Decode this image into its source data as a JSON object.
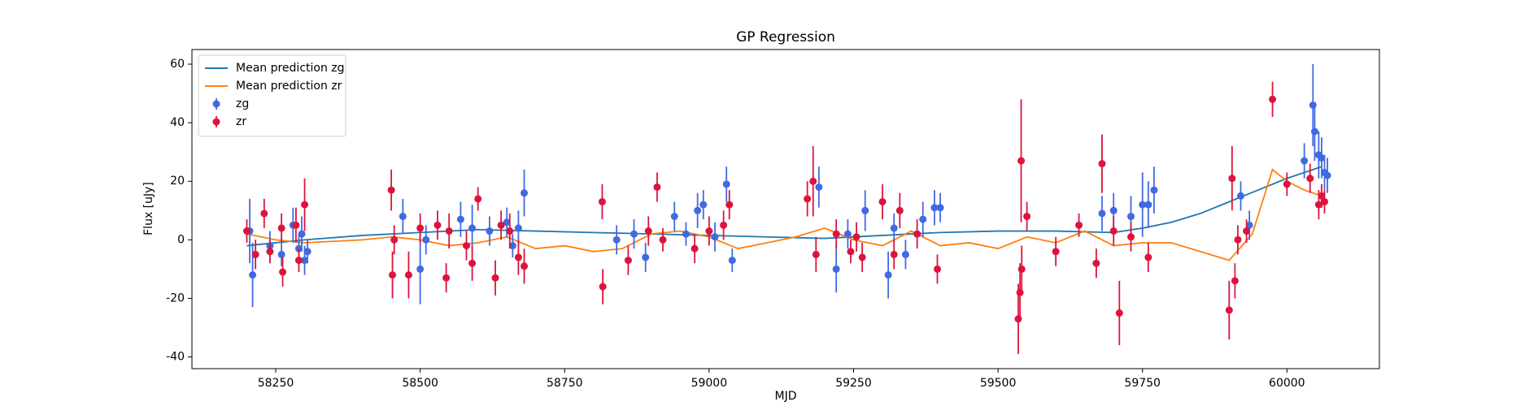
{
  "chart_data": {
    "type": "scatter",
    "title": "GP Regression",
    "xlabel": "MJD",
    "ylabel": "Flux [uJy]",
    "xlim": [
      58105,
      60160
    ],
    "ylim": [
      -44,
      65
    ],
    "xticks": [
      58250,
      58500,
      58750,
      59000,
      59250,
      59500,
      59750,
      60000
    ],
    "yticks": [
      -40,
      -20,
      0,
      20,
      40,
      60
    ],
    "legend": "upper left",
    "series": [
      {
        "name": "Mean prediction zg",
        "kind": "line",
        "color": "#1f77b4",
        "x": [
          58200,
          58300,
          58400,
          58500,
          58600,
          58700,
          58800,
          58900,
          59000,
          59100,
          59200,
          59300,
          59400,
          59500,
          59600,
          59700,
          59750,
          59800,
          59850,
          59900,
          59950,
          60000,
          60060
        ],
        "values": [
          -2,
          0,
          1.5,
          2.5,
          3.5,
          3,
          2.5,
          2,
          1.5,
          1,
          0.5,
          1.5,
          2.5,
          3,
          3,
          2.5,
          4,
          6,
          9,
          13,
          17,
          21,
          25
        ]
      },
      {
        "name": "Mean prediction zr",
        "kind": "line",
        "color": "#ff7f0e",
        "x": [
          58200,
          58250,
          58300,
          58400,
          58450,
          58500,
          58550,
          58600,
          58650,
          58700,
          58750,
          58800,
          58850,
          58900,
          58950,
          59000,
          59050,
          59100,
          59150,
          59200,
          59250,
          59300,
          59350,
          59400,
          59450,
          59500,
          59550,
          59600,
          59650,
          59700,
          59750,
          59800,
          59850,
          59900,
          59940,
          59975,
          60000,
          60030,
          60060
        ],
        "values": [
          2,
          0,
          -1,
          0,
          1,
          0,
          -2,
          -1,
          1,
          -3,
          -2,
          -4,
          -3,
          2,
          3,
          1,
          -3,
          -1,
          1,
          4,
          0,
          -2,
          3,
          -2,
          -1,
          -3,
          1,
          -1,
          3,
          -2,
          -1,
          -1,
          -4,
          -7,
          2,
          24,
          20,
          17,
          15
        ]
      },
      {
        "name": "zg",
        "kind": "errorbar",
        "color": "#4169e1",
        "x": [
          58205,
          58210,
          58240,
          58260,
          58280,
          58290,
          58295,
          58300,
          58305,
          58470,
          58500,
          58510,
          58570,
          58590,
          58620,
          58650,
          58660,
          58670,
          58680,
          58840,
          58870,
          58890,
          58940,
          58960,
          58980,
          58990,
          59010,
          59030,
          59040,
          59190,
          59220,
          59240,
          59270,
          59310,
          59320,
          59340,
          59370,
          59390,
          59400,
          59680,
          59700,
          59730,
          59750,
          59760,
          59770,
          59920,
          59935,
          60030,
          60045,
          60048,
          60055,
          60060,
          60065,
          60070
        ],
        "values": [
          3,
          -12,
          -2,
          -5,
          5,
          -3,
          2,
          -7,
          -4,
          8,
          -10,
          0,
          7,
          4,
          3,
          6,
          -2,
          4,
          16,
          0,
          2,
          -6,
          8,
          2,
          10,
          12,
          1,
          19,
          -7,
          18,
          -10,
          2,
          10,
          -12,
          4,
          -5,
          7,
          11,
          11,
          9,
          10,
          8,
          12,
          12,
          17,
          15,
          5,
          27,
          46,
          37,
          29,
          28,
          23,
          22
        ],
        "errors": [
          11,
          11,
          5,
          4,
          6,
          5,
          6,
          5,
          4,
          6,
          12,
          5,
          6,
          8,
          5,
          5,
          4,
          6,
          8,
          5,
          5,
          5,
          5,
          4,
          6,
          5,
          5,
          6,
          4,
          7,
          8,
          5,
          7,
          8,
          5,
          5,
          6,
          6,
          5,
          6,
          6,
          7,
          11,
          8,
          8,
          5,
          5,
          6,
          14,
          10,
          8,
          7,
          6,
          6
        ]
      },
      {
        "name": "zr",
        "kind": "errorbar",
        "color": "#dc143c",
        "x": [
          58200,
          58215,
          58230,
          58240,
          58260,
          58262,
          58285,
          58290,
          58300,
          58450,
          58455,
          58452,
          58480,
          58500,
          58530,
          58545,
          58550,
          58580,
          58590,
          58600,
          58630,
          58640,
          58655,
          58670,
          58680,
          58815,
          58816,
          58860,
          58895,
          58910,
          58920,
          58975,
          59000,
          59025,
          59035,
          59170,
          59180,
          59185,
          59220,
          59245,
          59255,
          59265,
          59300,
          59320,
          59330,
          59360,
          59395,
          59540,
          59535,
          59538,
          59541,
          59550,
          59600,
          59640,
          59670,
          59680,
          59700,
          59710,
          59730,
          59760,
          59900,
          59905,
          59910,
          59915,
          59930,
          59975,
          60000,
          60040,
          60055,
          60060,
          60065
        ],
        "values": [
          3,
          -5,
          9,
          -4,
          4,
          -11,
          5,
          -7,
          12,
          17,
          0,
          -12,
          -12,
          4,
          5,
          -13,
          3,
          -2,
          -8,
          14,
          -13,
          5,
          3,
          -6,
          -9,
          13,
          -16,
          -7,
          3,
          18,
          0,
          -3,
          3,
          5,
          12,
          14,
          20,
          -5,
          2,
          -4,
          1,
          -6,
          13,
          -5,
          10,
          2,
          -10,
          27,
          -27,
          -18,
          -10,
          8,
          -4,
          5,
          -8,
          26,
          3,
          -25,
          1,
          -6,
          -24,
          21,
          -14,
          0,
          3,
          48,
          19,
          21,
          12,
          15,
          13
        ],
        "errors": [
          4,
          5,
          5,
          4,
          5,
          5,
          6,
          4,
          9,
          7,
          5,
          8,
          8,
          5,
          5,
          5,
          6,
          5,
          6,
          4,
          6,
          5,
          6,
          6,
          6,
          6,
          6,
          5,
          5,
          5,
          4,
          5,
          5,
          5,
          5,
          6,
          12,
          6,
          5,
          4,
          5,
          5,
          6,
          5,
          6,
          5,
          5,
          21,
          12,
          10,
          8,
          5,
          5,
          4,
          5,
          10,
          5,
          11,
          5,
          5,
          10,
          11,
          6,
          5,
          4,
          6,
          4,
          5,
          5,
          4,
          4
        ]
      }
    ]
  }
}
